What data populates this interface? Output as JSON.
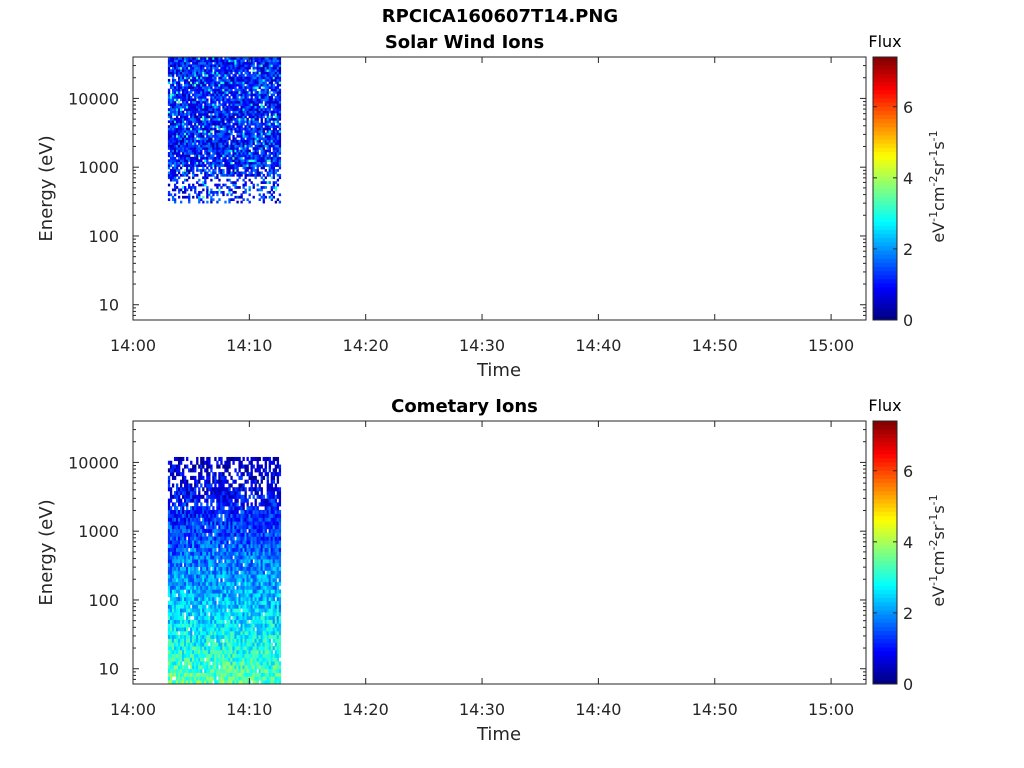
{
  "figure": {
    "title": "RPCICA160607T14.PNG"
  },
  "chart_data": [
    {
      "type": "heatmap",
      "title": "Solar Wind Ions",
      "xlabel": "Time",
      "ylabel": "Energy (eV)",
      "y_scale": "log",
      "xlim": [
        "14:00",
        "15:03"
      ],
      "ylim": [
        6,
        40000
      ],
      "x_ticks": [
        "14:00",
        "14:10",
        "14:20",
        "14:30",
        "14:40",
        "14:50",
        "15:00"
      ],
      "y_ticks": [
        10,
        100,
        1000,
        10000
      ],
      "y_tick_labels": [
        "10",
        "100",
        "1000",
        "10000"
      ],
      "colorbar": {
        "title": "Flux",
        "label": "eV-1cm-2sr-1s-1",
        "range": [
          0,
          7.4
        ],
        "ticks": [
          0,
          2,
          4,
          6
        ],
        "colormap": "jet"
      },
      "data_region": {
        "time_start": "14:03",
        "time_end": "14:12.7",
        "energy_min": 300,
        "energy_max": 40000,
        "typical_flux": "0.2-2",
        "sparse_below_eV": 700
      }
    },
    {
      "type": "heatmap",
      "title": "Cometary Ions",
      "xlabel": "Time",
      "ylabel": "Energy (eV)",
      "y_scale": "log",
      "xlim": [
        "14:00",
        "15:03"
      ],
      "ylim": [
        6,
        40000
      ],
      "x_ticks": [
        "14:00",
        "14:10",
        "14:20",
        "14:30",
        "14:40",
        "14:50",
        "15:00"
      ],
      "y_ticks": [
        10,
        100,
        1000,
        10000
      ],
      "y_tick_labels": [
        "10",
        "100",
        "1000",
        "10000"
      ],
      "colorbar": {
        "title": "Flux",
        "label": "eV-1cm-2sr-1s-1",
        "range": [
          0,
          7.4
        ],
        "ticks": [
          0,
          2,
          4,
          6
        ],
        "colormap": "jet"
      },
      "data_region": {
        "time_start": "14:03",
        "time_end": "14:12.7",
        "energy_min": 6,
        "energy_max": 12000,
        "flux_low_energy": "2-4",
        "flux_high_energy": "0.2-1",
        "sparse_above_eV": 2000
      }
    }
  ]
}
